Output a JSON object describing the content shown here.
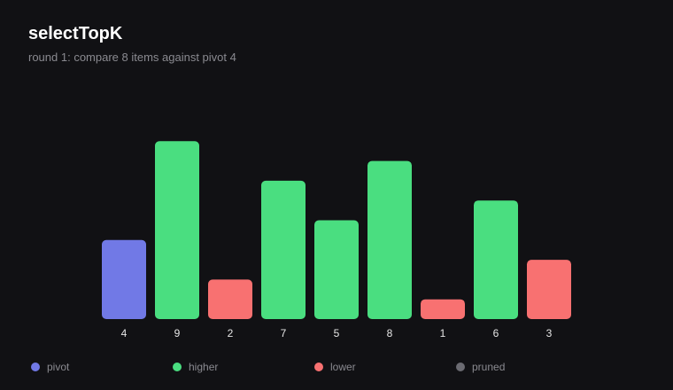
{
  "header": {
    "title": "selectTopK",
    "subtitle": "round 1: compare 8 items against pivot 4"
  },
  "colors": {
    "background": "#111114",
    "pivot": "#7179e6",
    "higher": "#4ade80",
    "lower": "#f87171",
    "pruned": "#6b6b72",
    "tick_text": "#e6e6e6",
    "muted_text": "#8a8a90"
  },
  "chart_data": {
    "type": "bar",
    "categories": [
      "4",
      "9",
      "2",
      "7",
      "5",
      "8",
      "1",
      "6",
      "3"
    ],
    "values": [
      4,
      9,
      2,
      7,
      5,
      8,
      1,
      6,
      3
    ],
    "status": [
      "pivot",
      "higher",
      "lower",
      "higher",
      "higher",
      "higher",
      "lower",
      "higher",
      "lower"
    ],
    "title": "selectTopK",
    "subtitle": "round 1: compare 8 items against pivot 4",
    "ylim": [
      0,
      9
    ],
    "grid": false,
    "legend_position": "bottom"
  },
  "legend": {
    "items": [
      {
        "key": "pivot",
        "label": "pivot",
        "color": "#7179e6"
      },
      {
        "key": "higher",
        "label": "higher",
        "color": "#4ade80"
      },
      {
        "key": "lower",
        "label": "lower",
        "color": "#f87171"
      },
      {
        "key": "pruned",
        "label": "pruned",
        "color": "#6b6b72"
      }
    ]
  }
}
